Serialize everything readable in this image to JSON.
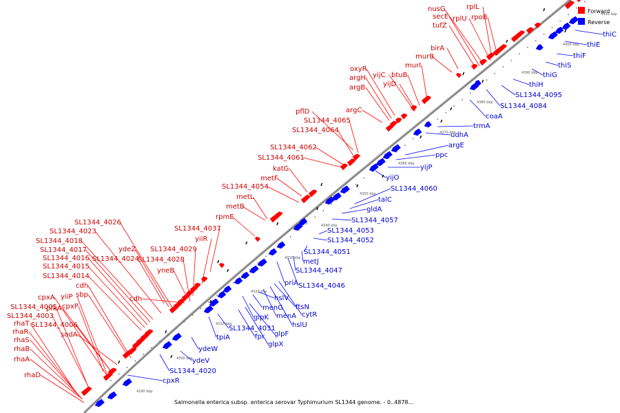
{
  "caption": "Salmonella enterica subsp. enterica serovar Typhimurium SL1344 genome. - 0..4878...",
  "legend": [
    {
      "label": "Forward",
      "color": "#ff0000"
    },
    {
      "label": "Reverse",
      "color": "#0000ff"
    }
  ],
  "colors": {
    "forward": "#ff0000",
    "reverse": "#0000ff",
    "backbone": "#888888"
  },
  "ticks": [
    "4290 kbp",
    "4300 kbp",
    "4310 kbp",
    "4320 kbp",
    "4330 kbp",
    "4340 kbp",
    "4350 kbp",
    "4360 kbp",
    "4370 kbp",
    "4380 kbp",
    "4390 kbp",
    "4400 kbp",
    "4410 kbp"
  ],
  "forward_genes": [
    "rhaD",
    "rhaA",
    "rhaB",
    "rhaS",
    "rhaR",
    "rhaT",
    "SL1344_4003",
    "SL1344_4005",
    "cpxA",
    "yiiP",
    "cpxP",
    "pfkA",
    "SL1344_4006",
    "sodA",
    "cdh",
    "sbp",
    "SL1344_4014",
    "SL1344_4015",
    "SL1344_4016",
    "SL1344_4017",
    "SL1344_4018",
    "SL1344_4023",
    "SL1344_4026",
    "ydeZ",
    "SL1344_4024",
    "cdh",
    "SL1344_4028",
    "yneB",
    "SL1344_4029",
    "yiiR",
    "SL1344_4037",
    "rpmE",
    "metB",
    "metL",
    "SL1344_4054",
    "metF",
    "katG",
    "SL1344_4061",
    "SL1344_4062",
    "SL1344_4064",
    "SL1344_4065",
    "pflD",
    "argC",
    "argB",
    "argH",
    "oxyR",
    "yijC",
    "yijD",
    "btuB",
    "murI",
    "murB",
    "birA",
    "tufZ",
    "secE",
    "nusG",
    "rplU",
    "rplL",
    "rpoB"
  ],
  "reverse_genes": [
    "cpxR",
    "SL1344_4020",
    "ydeV",
    "ydeW",
    "tpiA",
    "SL1344_4031",
    "fpr",
    "glpX",
    "glpF",
    "glpK",
    "menG",
    "hslV",
    "menA",
    "hslU",
    "ftsN",
    "cytR",
    "priA",
    "SL1344_4046",
    "SL1344_4047",
    "metJ",
    "SL1344_4051",
    "SL1344_4052",
    "SL1344_4053",
    "SL1344_4057",
    "gldA",
    "talC",
    "SL1344_4060",
    "yijO",
    "yijP",
    "ppc",
    "argE",
    "udhA",
    "trmA",
    "coaA",
    "SL1344_4084",
    "SL1344_4095",
    "thiH",
    "thiG",
    "thiS",
    "thiF",
    "thiE",
    "thiC"
  ]
}
